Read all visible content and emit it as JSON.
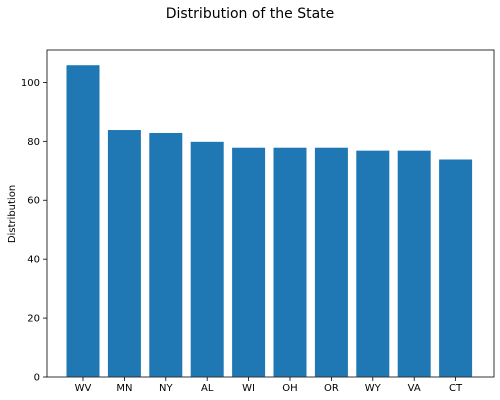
{
  "chart_data": {
    "type": "bar",
    "title": "Distribution of the State",
    "xlabel": "",
    "ylabel": "Distribution",
    "categories": [
      "WV",
      "MN",
      "NY",
      "AL",
      "WI",
      "OH",
      "OR",
      "WY",
      "VA",
      "CT"
    ],
    "values": [
      106,
      84,
      83,
      80,
      78,
      78,
      78,
      77,
      77,
      74
    ],
    "ylim": [
      0,
      111
    ],
    "yticks": [
      0,
      20,
      40,
      60,
      80,
      100
    ],
    "grid": false,
    "bar_color": "#1f77b4"
  }
}
